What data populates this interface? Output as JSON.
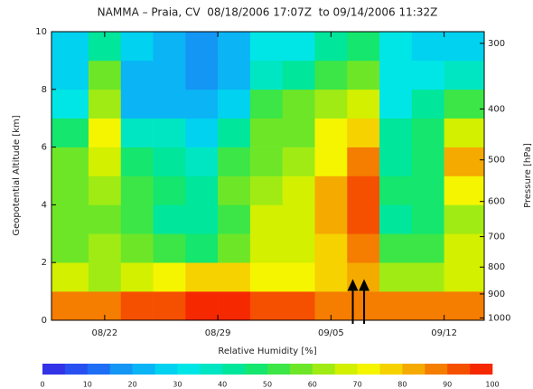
{
  "chart_data": {
    "type": "heatmap",
    "title": "NAMMA – Praia, CV  08/18/2006 17:07Z  to 09/14/2006 11:32Z",
    "y_label": "Geopotential Altitude [km]",
    "y2_label": "Pressure [hPa]",
    "colorbar_label": "Relative Humidity [%]",
    "xlim": [
      18.71,
      45.48
    ],
    "xticks": [
      {
        "value": 22,
        "label": "08/22"
      },
      {
        "value": 29,
        "label": "08/29"
      },
      {
        "value": 36,
        "label": "09/05"
      },
      {
        "value": 43,
        "label": "09/12"
      }
    ],
    "ylim": [
      0,
      10
    ],
    "yticks": [
      0,
      2,
      4,
      6,
      8,
      10
    ],
    "y2scale": "log",
    "y2lim": [
      1010,
      285
    ],
    "y2ticks": [
      300,
      400,
      500,
      600,
      700,
      800,
      900,
      1000
    ],
    "xbins": [
      18.71,
      21,
      23,
      25,
      27,
      29,
      31,
      33,
      35,
      37,
      39,
      41,
      43,
      45.48
    ],
    "ybins": [
      0,
      1,
      2,
      3,
      4,
      5,
      6,
      7,
      8,
      9,
      10
    ],
    "z": [
      [
        85,
        85,
        90,
        90,
        95,
        95,
        90,
        90,
        85,
        85,
        85,
        85,
        85
      ],
      [
        65,
        60,
        65,
        70,
        75,
        75,
        70,
        70,
        75,
        80,
        60,
        60,
        65
      ],
      [
        55,
        60,
        55,
        50,
        45,
        55,
        65,
        65,
        75,
        85,
        50,
        50,
        65
      ],
      [
        55,
        55,
        50,
        40,
        40,
        50,
        65,
        65,
        80,
        90,
        40,
        45,
        60
      ],
      [
        55,
        60,
        50,
        45,
        40,
        55,
        60,
        65,
        80,
        90,
        45,
        45,
        70
      ],
      [
        55,
        65,
        45,
        40,
        35,
        50,
        55,
        60,
        70,
        85,
        40,
        45,
        80
      ],
      [
        45,
        70,
        35,
        35,
        25,
        40,
        55,
        55,
        70,
        75,
        40,
        45,
        65
      ],
      [
        30,
        60,
        20,
        20,
        20,
        25,
        50,
        55,
        60,
        65,
        30,
        40,
        50
      ],
      [
        25,
        55,
        20,
        20,
        15,
        20,
        35,
        40,
        50,
        55,
        30,
        30,
        35
      ],
      [
        25,
        40,
        25,
        20,
        15,
        20,
        30,
        30,
        40,
        45,
        30,
        25,
        25
      ]
    ],
    "clim": [
      0,
      100
    ],
    "cticks": [
      0,
      10,
      20,
      30,
      40,
      50,
      60,
      70,
      80,
      90,
      100
    ],
    "colorscale": [
      "#3232e6",
      "#2850f0",
      "#1e6ef5",
      "#1496f5",
      "#0ab4f5",
      "#00d2f0",
      "#00e6e6",
      "#00e6c3",
      "#00e69b",
      "#14e66e",
      "#3ce646",
      "#6ee628",
      "#a0eb14",
      "#d2f000",
      "#f5f500",
      "#f5d200",
      "#f5aa00",
      "#f57d00",
      "#f55000",
      "#f52800"
    ],
    "arrows": [
      37.35,
      38.05
    ]
  }
}
